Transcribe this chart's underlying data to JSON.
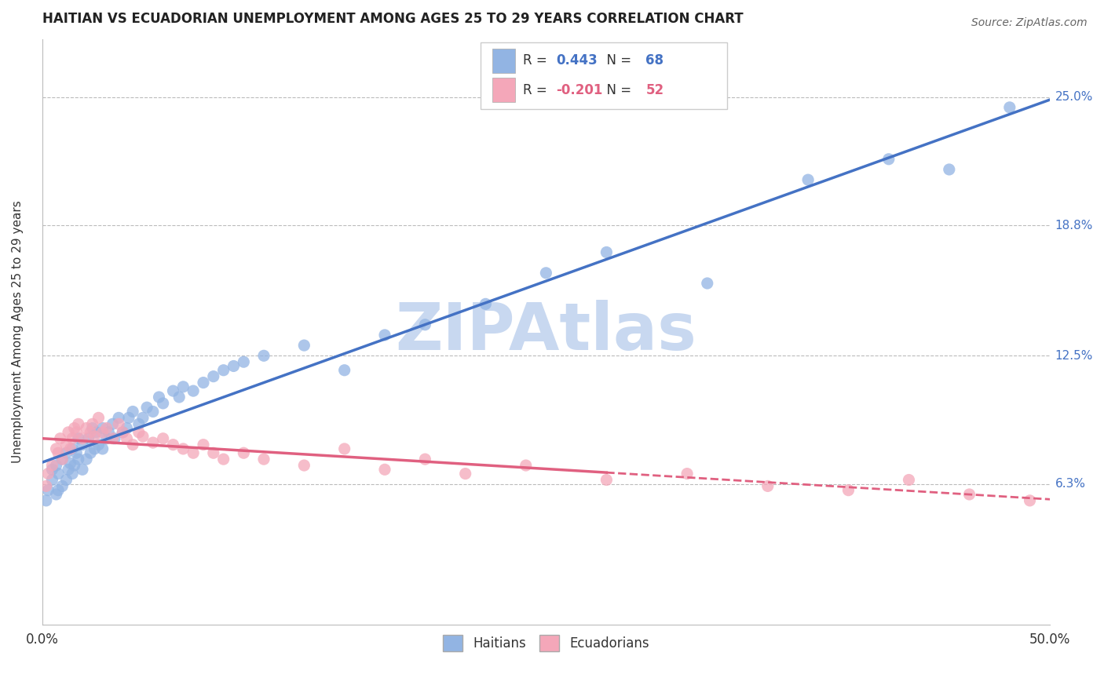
{
  "title": "HAITIAN VS ECUADORIAN UNEMPLOYMENT AMONG AGES 25 TO 29 YEARS CORRELATION CHART",
  "source": "Source: ZipAtlas.com",
  "ylabel": "Unemployment Among Ages 25 to 29 years",
  "xlim": [
    0.0,
    0.5
  ],
  "ylim": [
    -0.005,
    0.278
  ],
  "ytick_labels_right": [
    "6.3%",
    "12.5%",
    "18.8%",
    "25.0%"
  ],
  "ytick_vals_right": [
    0.063,
    0.125,
    0.188,
    0.25
  ],
  "haitian_R": 0.443,
  "haitian_N": 68,
  "ecuadorian_R": -0.201,
  "ecuadorian_N": 52,
  "haitian_color": "#92b4e3",
  "ecuadorian_color": "#f4a7b9",
  "haitian_line_color": "#4472c4",
  "ecuadorian_line_color": "#e06080",
  "watermark": "ZIPAtlas",
  "watermark_color": "#c8d8f0",
  "haitian_x": [
    0.002,
    0.003,
    0.005,
    0.005,
    0.007,
    0.007,
    0.008,
    0.008,
    0.01,
    0.01,
    0.012,
    0.012,
    0.013,
    0.014,
    0.015,
    0.015,
    0.016,
    0.017,
    0.018,
    0.018,
    0.02,
    0.02,
    0.022,
    0.023,
    0.024,
    0.025,
    0.026,
    0.027,
    0.028,
    0.03,
    0.03,
    0.032,
    0.033,
    0.035,
    0.036,
    0.038,
    0.04,
    0.042,
    0.043,
    0.045,
    0.048,
    0.05,
    0.052,
    0.055,
    0.058,
    0.06,
    0.065,
    0.068,
    0.07,
    0.075,
    0.08,
    0.085,
    0.09,
    0.095,
    0.1,
    0.11,
    0.13,
    0.15,
    0.17,
    0.19,
    0.22,
    0.25,
    0.28,
    0.33,
    0.38,
    0.42,
    0.45,
    0.48
  ],
  "haitian_y": [
    0.055,
    0.06,
    0.065,
    0.07,
    0.058,
    0.072,
    0.06,
    0.068,
    0.062,
    0.075,
    0.065,
    0.078,
    0.07,
    0.073,
    0.068,
    0.08,
    0.072,
    0.078,
    0.075,
    0.085,
    0.07,
    0.082,
    0.075,
    0.085,
    0.078,
    0.09,
    0.08,
    0.088,
    0.082,
    0.08,
    0.09,
    0.085,
    0.088,
    0.092,
    0.085,
    0.095,
    0.088,
    0.09,
    0.095,
    0.098,
    0.092,
    0.095,
    0.1,
    0.098,
    0.105,
    0.102,
    0.108,
    0.105,
    0.11,
    0.108,
    0.112,
    0.115,
    0.118,
    0.12,
    0.122,
    0.125,
    0.13,
    0.118,
    0.135,
    0.14,
    0.15,
    0.165,
    0.175,
    0.16,
    0.21,
    0.22,
    0.215,
    0.245
  ],
  "ecuadorian_x": [
    0.002,
    0.003,
    0.005,
    0.007,
    0.008,
    0.009,
    0.01,
    0.012,
    0.013,
    0.014,
    0.015,
    0.016,
    0.017,
    0.018,
    0.02,
    0.022,
    0.024,
    0.025,
    0.026,
    0.028,
    0.03,
    0.032,
    0.035,
    0.038,
    0.04,
    0.042,
    0.045,
    0.048,
    0.05,
    0.055,
    0.06,
    0.065,
    0.07,
    0.075,
    0.08,
    0.085,
    0.09,
    0.1,
    0.11,
    0.13,
    0.15,
    0.17,
    0.19,
    0.21,
    0.24,
    0.28,
    0.32,
    0.36,
    0.4,
    0.43,
    0.46,
    0.49
  ],
  "ecuadorian_y": [
    0.062,
    0.068,
    0.072,
    0.08,
    0.078,
    0.085,
    0.075,
    0.082,
    0.088,
    0.08,
    0.085,
    0.09,
    0.088,
    0.092,
    0.085,
    0.09,
    0.088,
    0.092,
    0.086,
    0.095,
    0.088,
    0.09,
    0.085,
    0.092,
    0.088,
    0.085,
    0.082,
    0.088,
    0.086,
    0.083,
    0.085,
    0.082,
    0.08,
    0.078,
    0.082,
    0.078,
    0.075,
    0.078,
    0.075,
    0.072,
    0.08,
    0.07,
    0.075,
    0.068,
    0.072,
    0.065,
    0.068,
    0.062,
    0.06,
    0.065,
    0.058,
    0.055
  ]
}
